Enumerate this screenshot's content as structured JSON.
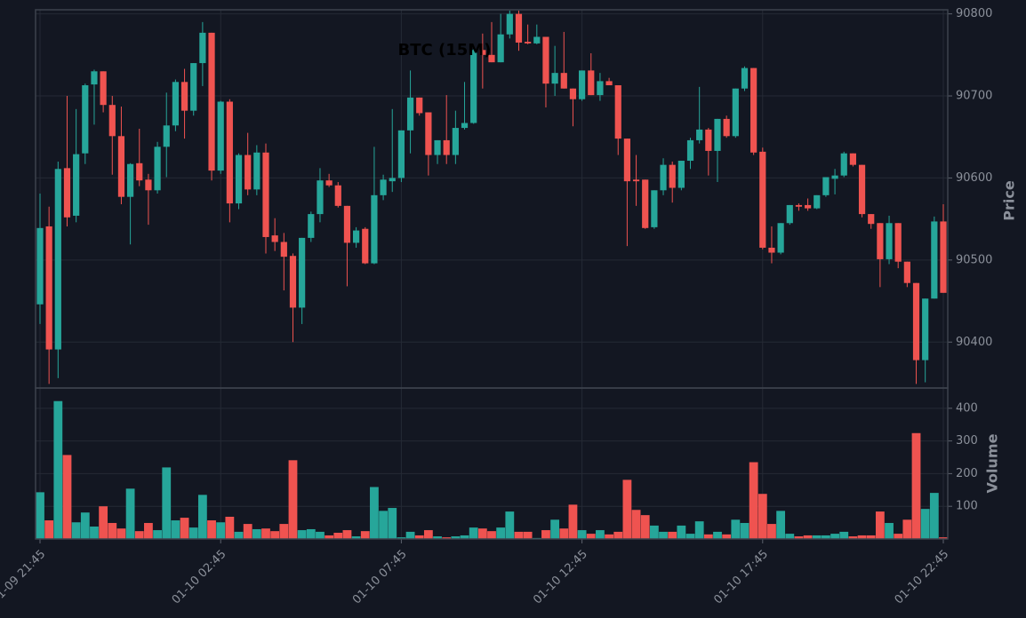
{
  "chart_data": {
    "type": "candlestick",
    "title": "BTC (15M)",
    "ylabel": "Price",
    "volume_ylabel": "Volume",
    "up_color": "#26a69a",
    "down_color": "#ef5350",
    "grid": true,
    "categories": [
      "01-09 21:45",
      null,
      null,
      null,
      null,
      null,
      null,
      null,
      null,
      null,
      null,
      null,
      null,
      null,
      null,
      null,
      null,
      null,
      null,
      null,
      "01-10 02:45",
      null,
      null,
      null,
      null,
      null,
      null,
      null,
      null,
      null,
      null,
      null,
      null,
      null,
      null,
      null,
      null,
      null,
      null,
      null,
      "01-10 07:45",
      null,
      null,
      null,
      null,
      null,
      null,
      null,
      null,
      null,
      null,
      null,
      null,
      null,
      null,
      null,
      null,
      null,
      null,
      null,
      "01-10 12:45",
      null,
      null,
      null,
      null,
      null,
      null,
      null,
      null,
      null,
      null,
      null,
      null,
      null,
      null,
      null,
      null,
      null,
      null,
      null,
      "01-10 17:45",
      null,
      null,
      null,
      null,
      null,
      null,
      null,
      null,
      null,
      null,
      null,
      null,
      null,
      null,
      null,
      null,
      null,
      null,
      null,
      "01-10 22:45"
    ],
    "open": [
      90446,
      90541,
      90391,
      90612,
      90554,
      90630,
      90714,
      90730,
      90689,
      90651,
      90577,
      90618,
      90598,
      90585,
      90638,
      90664,
      90717,
      90682,
      90740,
      90777,
      90609,
      90693,
      90569,
      90628,
      90586,
      90631,
      90530,
      90522,
      90505,
      90442,
      90527,
      90556,
      90597,
      90591,
      90566,
      90521,
      90538,
      90496,
      90579,
      90596,
      90600,
      90658,
      90698,
      90680,
      90628,
      90646,
      90628,
      90661,
      90667,
      90756,
      90750,
      90741,
      90775,
      90800,
      90766,
      90764,
      90772,
      90715,
      90728,
      90709,
      90696,
      90731,
      90701,
      90718,
      90713,
      90648,
      90598,
      90598,
      90540,
      90585,
      90616,
      90588,
      90621,
      90646,
      90659,
      90633,
      90672,
      90651,
      90709,
      90734,
      90632,
      90515,
      90509,
      90545,
      90567,
      90567,
      90563,
      90579,
      90599,
      90603,
      90630,
      90616,
      90556,
      90545,
      90501,
      90545,
      90498,
      90472,
      90378,
      90453,
      90547
    ],
    "high": [
      90581,
      90565,
      90620,
      90700,
      90684,
      90715,
      90732,
      90730,
      90700,
      90687,
      90618,
      90660,
      90605,
      90644,
      90704,
      90720,
      90733,
      90740,
      90790,
      90777,
      90694,
      90696,
      90630,
      90655,
      90640,
      90642,
      90551,
      90533,
      90508,
      90527,
      90559,
      90612,
      90605,
      90595,
      90566,
      90540,
      90540,
      90638,
      90604,
      90684,
      90658,
      90731,
      90698,
      90680,
      90646,
      90701,
      90682,
      90717,
      90757,
      90776,
      90790,
      90800,
      90804,
      90804,
      90787,
      90787,
      90772,
      90761,
      90778,
      90709,
      90731,
      90752,
      90728,
      90722,
      90713,
      90648,
      90628,
      90598,
      90585,
      90624,
      90620,
      90621,
      90649,
      90711,
      90661,
      90672,
      90676,
      90709,
      90736,
      90734,
      90637,
      90541,
      90545,
      90567,
      90569,
      90575,
      90579,
      90601,
      90611,
      90632,
      90630,
      90616,
      90556,
      90545,
      90554,
      90545,
      90498,
      90472,
      90453,
      90553,
      90568
    ],
    "low": [
      90422,
      90349,
      90356,
      90541,
      90546,
      90617,
      90665,
      90680,
      90604,
      90568,
      90519,
      90590,
      90543,
      90581,
      90601,
      90657,
      90648,
      90676,
      90712,
      90597,
      90605,
      90546,
      90562,
      90579,
      90579,
      90508,
      90511,
      90463,
      90400,
      90422,
      90522,
      90546,
      90589,
      90564,
      90468,
      90515,
      90495,
      90495,
      90573,
      90583,
      90595,
      90630,
      90676,
      90603,
      90617,
      90617,
      90617,
      90659,
      90666,
      90709,
      90741,
      90741,
      90770,
      90755,
      90763,
      90763,
      90686,
      90700,
      90709,
      90663,
      90694,
      90701,
      90694,
      90713,
      90628,
      90517,
      90566,
      90538,
      90538,
      90579,
      90570,
      90585,
      90611,
      90642,
      90603,
      90595,
      90649,
      90649,
      90706,
      90628,
      90513,
      90496,
      90507,
      90543,
      90560,
      90560,
      90562,
      90577,
      90580,
      90601,
      90614,
      90552,
      90538,
      90467,
      90495,
      90490,
      90467,
      90349,
      90351,
      90453,
      90460
    ],
    "close": [
      90539,
      90391,
      90611,
      90552,
      90629,
      90713,
      90730,
      90689,
      90651,
      90577,
      90617,
      90597,
      90585,
      90638,
      90664,
      90717,
      90682,
      90740,
      90777,
      90609,
      90693,
      90569,
      90628,
      90586,
      90631,
      90528,
      90522,
      90504,
      90442,
      90527,
      90556,
      90597,
      90591,
      90566,
      90521,
      90536,
      90496,
      90579,
      90598,
      90600,
      90658,
      90698,
      90679,
      90628,
      90646,
      90628,
      90661,
      90667,
      90756,
      90750,
      90741,
      90775,
      90800,
      90765,
      90764,
      90772,
      90715,
      90728,
      90709,
      90696,
      90731,
      90701,
      90718,
      90713,
      90648,
      90596,
      90596,
      90539,
      90585,
      90616,
      90588,
      90621,
      90646,
      90659,
      90633,
      90672,
      90651,
      90709,
      90734,
      90631,
      90515,
      90509,
      90545,
      90567,
      90565,
      90563,
      90579,
      90601,
      90603,
      90630,
      90616,
      90556,
      90544,
      90501,
      90545,
      90498,
      90472,
      90378,
      90453,
      90547,
      90460
    ],
    "volume": [
      143,
      57,
      422,
      257,
      51,
      81,
      38,
      100,
      49,
      32,
      154,
      24,
      49,
      27,
      219,
      57,
      65,
      35,
      135,
      57,
      51,
      68,
      22,
      46,
      30,
      32,
      24,
      46,
      241,
      27,
      30,
      22,
      11,
      19,
      27,
      8,
      24,
      159,
      86,
      95,
      5,
      22,
      11,
      27,
      8,
      5,
      8,
      11,
      35,
      32,
      24,
      35,
      84,
      22,
      22,
      3,
      27,
      59,
      32,
      105,
      27,
      16,
      27,
      14,
      22,
      181,
      89,
      73,
      41,
      22,
      22,
      41,
      16,
      54,
      14,
      22,
      14,
      59,
      49,
      235,
      138,
      46,
      86,
      16,
      8,
      11,
      11,
      11,
      16,
      22,
      8,
      11,
      11,
      84,
      49,
      16,
      59,
      324,
      92,
      141,
      5
    ],
    "ylim": [
      90344,
      90805
    ],
    "yticks": [
      90400,
      90500,
      90600,
      90700,
      90800
    ],
    "volume_ylim": [
      0,
      462
    ],
    "volume_yticks": [
      100,
      200,
      300,
      400
    ]
  }
}
